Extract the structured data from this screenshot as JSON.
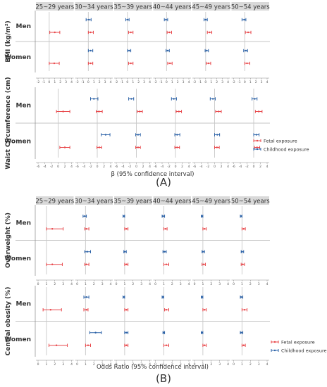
{
  "figure": {
    "panel_a_label": "(A)",
    "panel_b_label": "(B)"
  },
  "colors": {
    "fetal": "#e8474a",
    "childhood": "#2d63a8",
    "strip": "#d9d9d9",
    "ref_line": "#c8c8c8",
    "axis": "#888888"
  },
  "chart_data": [
    {
      "type": "scatter",
      "subtype": "forest-plot",
      "panel": "(A)",
      "age_groups": [
        "25~29 years",
        "30~34 years",
        "35~39 years",
        "40~44 years",
        "45~49 years",
        "50~54 years"
      ],
      "xlabel": "β (95% confidence interval)",
      "legend": {
        "position": "right",
        "entries": [
          "Fetal exposure",
          "Childhood exposure"
        ]
      },
      "reference_line": 0,
      "rows": [
        {
          "outcome_label": "BMI (kg/m²)",
          "xlim": [
            -2,
            4
          ],
          "ticks": [
            -2,
            -1,
            0,
            1,
            2,
            3,
            4
          ],
          "sexes": [
            {
              "sex": "Men",
              "series": [
                {
                  "name": "Childhood exposure",
                  "points": [
                    null,
                    {
                      "est": 0.1,
                      "lo": -0.4,
                      "hi": 0.5
                    },
                    {
                      "est": 0.0,
                      "lo": -0.3,
                      "hi": 0.3
                    },
                    {
                      "est": -0.1,
                      "lo": -0.4,
                      "hi": 0.2
                    },
                    {
                      "est": 0.0,
                      "lo": -0.3,
                      "hi": 0.3
                    },
                    {
                      "est": -0.1,
                      "lo": -0.5,
                      "hi": 0.2
                    }
                  ]
                },
                {
                  "name": "Fetal exposure",
                  "points": [
                    {
                      "est": 1.0,
                      "lo": 0.1,
                      "hi": 1.9
                    },
                    {
                      "est": 0.4,
                      "lo": 0.0,
                      "hi": 0.9
                    },
                    {
                      "est": 0.6,
                      "lo": 0.2,
                      "hi": 1.0
                    },
                    {
                      "est": 0.5,
                      "lo": 0.1,
                      "hi": 0.9
                    },
                    {
                      "est": 0.7,
                      "lo": 0.3,
                      "hi": 1.1
                    },
                    {
                      "est": 0.6,
                      "lo": 0.1,
                      "hi": 1.1
                    }
                  ]
                }
              ]
            },
            {
              "sex": "Women",
              "series": [
                {
                  "name": "Childhood exposure",
                  "points": [
                    null,
                    {
                      "est": 0.4,
                      "lo": 0.0,
                      "hi": 0.8
                    },
                    {
                      "est": 0.3,
                      "lo": 0.0,
                      "hi": 0.6
                    },
                    {
                      "est": 0.2,
                      "lo": -0.1,
                      "hi": 0.5
                    },
                    {
                      "est": 0.2,
                      "lo": -0.1,
                      "hi": 0.5
                    },
                    {
                      "est": 0.2,
                      "lo": -0.2,
                      "hi": 0.5
                    }
                  ]
                },
                {
                  "name": "Fetal exposure",
                  "points": [
                    {
                      "est": 0.9,
                      "lo": 0.0,
                      "hi": 1.8
                    },
                    {
                      "est": 0.4,
                      "lo": 0.0,
                      "hi": 0.8
                    },
                    {
                      "est": 0.6,
                      "lo": 0.2,
                      "hi": 1.0
                    },
                    {
                      "est": 0.6,
                      "lo": 0.2,
                      "hi": 1.0
                    },
                    {
                      "est": 0.5,
                      "lo": 0.1,
                      "hi": 0.9
                    },
                    {
                      "est": 0.4,
                      "lo": 0.0,
                      "hi": 0.9
                    }
                  ]
                }
              ]
            }
          ]
        },
        {
          "outcome_label": "Waist Circumference (cm)",
          "xlim": [
            -6,
            4
          ],
          "ticks": [
            -6,
            -4,
            -2,
            0,
            2,
            4
          ],
          "sexes": [
            {
              "sex": "Men",
              "series": [
                {
                  "name": "Childhood exposure",
                  "points": [
                    null,
                    {
                      "est": -1.0,
                      "lo": -2.0,
                      "hi": 0.2
                    },
                    {
                      "est": -1.5,
                      "lo": -2.3,
                      "hi": -0.8
                    },
                    {
                      "est": -0.5,
                      "lo": -1.2,
                      "hi": 0.3
                    },
                    {
                      "est": -0.5,
                      "lo": -1.3,
                      "hi": 0.2
                    },
                    {
                      "est": 0.3,
                      "lo": -0.5,
                      "hi": 1.0
                    }
                  ]
                },
                {
                  "name": "Fetal exposure",
                  "points": [
                    {
                      "est": 1.5,
                      "lo": -0.5,
                      "hi": 3.5
                    },
                    {
                      "est": 0.5,
                      "lo": -0.3,
                      "hi": 1.5
                    },
                    {
                      "est": 1.0,
                      "lo": 0.3,
                      "hi": 1.8
                    },
                    {
                      "est": 1.0,
                      "lo": 0.2,
                      "hi": 1.8
                    },
                    {
                      "est": 1.2,
                      "lo": 0.3,
                      "hi": 2.0
                    },
                    {
                      "est": 1.5,
                      "lo": 0.5,
                      "hi": 2.5
                    }
                  ]
                }
              ]
            },
            {
              "sex": "Women",
              "series": [
                {
                  "name": "Childhood exposure",
                  "points": [
                    null,
                    {
                      "est": 2.5,
                      "lo": 1.2,
                      "hi": 3.8
                    },
                    {
                      "est": 0.5,
                      "lo": -0.2,
                      "hi": 1.2
                    },
                    {
                      "est": 0.5,
                      "lo": -0.2,
                      "hi": 1.3
                    },
                    {
                      "est": 0.8,
                      "lo": 0.0,
                      "hi": 1.5
                    },
                    {
                      "est": 0.8,
                      "lo": 0.0,
                      "hi": 1.6
                    }
                  ]
                },
                {
                  "name": "Fetal exposure",
                  "points": [
                    {
                      "est": 2.0,
                      "lo": 0.5,
                      "hi": 3.5
                    },
                    {
                      "est": 0.6,
                      "lo": -0.1,
                      "hi": 1.3
                    },
                    {
                      "est": 0.5,
                      "lo": -0.2,
                      "hi": 1.2
                    },
                    {
                      "est": 0.5,
                      "lo": -0.2,
                      "hi": 1.2
                    },
                    {
                      "est": 0.7,
                      "lo": 0.0,
                      "hi": 1.4
                    },
                    {
                      "est": 1.0,
                      "lo": 0.2,
                      "hi": 1.8
                    }
                  ]
                }
              ]
            }
          ]
        }
      ]
    },
    {
      "type": "scatter",
      "subtype": "forest-plot",
      "panel": "(B)",
      "age_groups": [
        "25~29 years",
        "30~34 years",
        "35~39 years",
        "40~44 years",
        "45~49 years",
        "50~54 years"
      ],
      "xlabel": "Odds Ratio (95% confidence interval)",
      "legend": {
        "position": "right",
        "entries": [
          "Fetal exposure",
          "Childhood exposure"
        ]
      },
      "reference_line": 1,
      "rows": [
        {
          "outcome_label": "Overweight (%)",
          "xlim": [
            0,
            4
          ],
          "ticks": [
            0,
            1,
            2,
            3,
            4
          ],
          "sexes": [
            {
              "sex": "Men",
              "series": [
                {
                  "name": "Childhood exposure",
                  "points": [
                    null,
                    {
                      "est": 0.9,
                      "lo": 0.7,
                      "hi": 1.1
                    },
                    {
                      "est": 0.9,
                      "lo": 0.8,
                      "hi": 1.0
                    },
                    {
                      "est": 0.9,
                      "lo": 0.8,
                      "hi": 1.1
                    },
                    {
                      "est": 0.9,
                      "lo": 0.8,
                      "hi": 1.0
                    },
                    {
                      "est": 0.9,
                      "lo": 0.8,
                      "hi": 1.0
                    }
                  ]
                },
                {
                  "name": "Fetal exposure",
                  "points": [
                    {
                      "est": 1.7,
                      "lo": 1.0,
                      "hi": 3.0
                    },
                    {
                      "est": 1.1,
                      "lo": 0.9,
                      "hi": 1.4
                    },
                    {
                      "est": 1.2,
                      "lo": 1.0,
                      "hi": 1.4
                    },
                    {
                      "est": 1.2,
                      "lo": 1.0,
                      "hi": 1.4
                    },
                    {
                      "est": 1.2,
                      "lo": 1.0,
                      "hi": 1.4
                    },
                    {
                      "est": 1.2,
                      "lo": 1.0,
                      "hi": 1.4
                    }
                  ]
                }
              ]
            },
            {
              "sex": "Women",
              "series": [
                {
                  "name": "Childhood exposure",
                  "points": [
                    null,
                    {
                      "est": 1.2,
                      "lo": 0.9,
                      "hi": 1.6
                    },
                    {
                      "est": 1.0,
                      "lo": 0.9,
                      "hi": 1.2
                    },
                    {
                      "est": 1.1,
                      "lo": 0.9,
                      "hi": 1.3
                    },
                    {
                      "est": 1.0,
                      "lo": 0.9,
                      "hi": 1.2
                    },
                    {
                      "est": 1.0,
                      "lo": 0.9,
                      "hi": 1.2
                    }
                  ]
                },
                {
                  "name": "Fetal exposure",
                  "points": [
                    {
                      "est": 1.7,
                      "lo": 1.0,
                      "hi": 2.9
                    },
                    {
                      "est": 1.1,
                      "lo": 0.9,
                      "hi": 1.4
                    },
                    {
                      "est": 1.2,
                      "lo": 1.0,
                      "hi": 1.4
                    },
                    {
                      "est": 1.3,
                      "lo": 1.0,
                      "hi": 1.6
                    },
                    {
                      "est": 1.1,
                      "lo": 0.9,
                      "hi": 1.3
                    },
                    {
                      "est": 1.1,
                      "lo": 0.9,
                      "hi": 1.3
                    }
                  ]
                }
              ]
            }
          ]
        },
        {
          "outcome_label": "Central obesity (%)",
          "xlim": [
            0,
            4
          ],
          "ticks": [
            0,
            1,
            2,
            3,
            4
          ],
          "sexes": [
            {
              "sex": "Men",
              "series": [
                {
                  "name": "Childhood exposure",
                  "points": [
                    null,
                    {
                      "est": 1.1,
                      "lo": 0.8,
                      "hi": 1.4
                    },
                    {
                      "est": 0.9,
                      "lo": 0.8,
                      "hi": 1.0
                    },
                    {
                      "est": 0.9,
                      "lo": 0.8,
                      "hi": 1.0
                    },
                    {
                      "est": 0.9,
                      "lo": 0.8,
                      "hi": 1.0
                    },
                    {
                      "est": 0.9,
                      "lo": 0.8,
                      "hi": 1.1
                    }
                  ]
                },
                {
                  "name": "Fetal exposure",
                  "points": [
                    {
                      "est": 1.5,
                      "lo": 0.6,
                      "hi": 2.8
                    },
                    {
                      "est": 1.1,
                      "lo": 0.8,
                      "hi": 1.3
                    },
                    {
                      "est": 1.2,
                      "lo": 1.0,
                      "hi": 1.4
                    },
                    {
                      "est": 1.3,
                      "lo": 1.1,
                      "hi": 1.6
                    },
                    {
                      "est": 1.2,
                      "lo": 1.0,
                      "hi": 1.4
                    },
                    {
                      "est": 1.3,
                      "lo": 1.0,
                      "hi": 1.6
                    }
                  ]
                }
              ]
            },
            {
              "sex": "Women",
              "series": [
                {
                  "name": "Childhood exposure",
                  "points": [
                    null,
                    {
                      "est": 2.2,
                      "lo": 1.5,
                      "hi": 2.9
                    },
                    {
                      "est": 1.2,
                      "lo": 1.0,
                      "hi": 1.4
                    },
                    {
                      "est": 1.0,
                      "lo": 0.9,
                      "hi": 1.1
                    },
                    {
                      "est": 0.9,
                      "lo": 0.8,
                      "hi": 1.0
                    },
                    {
                      "est": 0.9,
                      "lo": 0.8,
                      "hi": 1.1
                    }
                  ]
                },
                {
                  "name": "Fetal exposure",
                  "points": [
                    {
                      "est": 2.2,
                      "lo": 1.3,
                      "hi": 3.5
                    },
                    {
                      "est": 1.3,
                      "lo": 1.0,
                      "hi": 1.6
                    },
                    {
                      "est": 1.2,
                      "lo": 1.0,
                      "hi": 1.4
                    },
                    {
                      "est": 1.3,
                      "lo": 1.0,
                      "hi": 1.6
                    },
                    {
                      "est": 1.2,
                      "lo": 1.0,
                      "hi": 1.4
                    },
                    {
                      "est": 1.2,
                      "lo": 1.0,
                      "hi": 1.4
                    }
                  ]
                }
              ]
            }
          ]
        }
      ]
    }
  ]
}
